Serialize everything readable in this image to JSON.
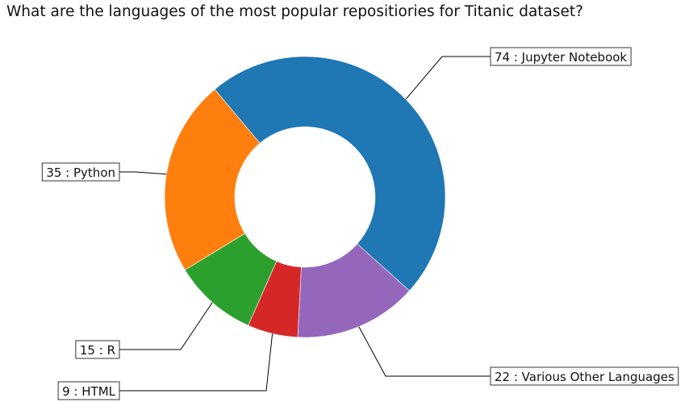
{
  "chart_data": {
    "type": "pie",
    "title": "What are the languages of the most popular repositiories for Titanic dataset?",
    "donut": true,
    "slices": [
      {
        "name": "Jupyter Notebook",
        "value": 74,
        "label": "74 : Jupyter Notebook",
        "color": "#1f77b4"
      },
      {
        "name": "Various Other Languages",
        "value": 22,
        "label": "22 : Various Other Languages",
        "color": "#9467bd"
      },
      {
        "name": "HTML",
        "value": 9,
        "label": "9 : HTML",
        "color": "#d62728"
      },
      {
        "name": "R",
        "value": 15,
        "label": "15 : R",
        "color": "#2ca02c"
      },
      {
        "name": "Python",
        "value": 35,
        "label": "35 : Python",
        "color": "#ff7f0e"
      }
    ]
  }
}
